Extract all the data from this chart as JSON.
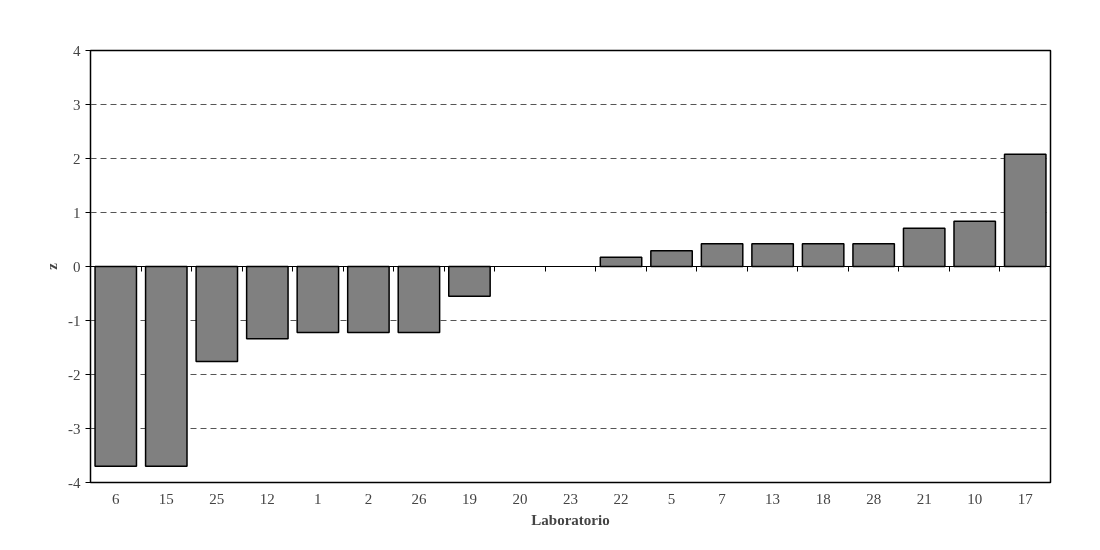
{
  "chart_data": {
    "type": "bar",
    "xlabel": "Laboratorio",
    "ylabel": "z",
    "categories": [
      "6",
      "15",
      "25",
      "12",
      "1",
      "2",
      "26",
      "19",
      "20",
      "23",
      "22",
      "5",
      "7",
      "13",
      "18",
      "28",
      "21",
      "10",
      "17"
    ],
    "values": [
      -3.7,
      -3.7,
      -1.76,
      -1.34,
      -1.22,
      -1.22,
      -1.22,
      -0.55,
      null,
      null,
      0.17,
      0.29,
      0.42,
      0.42,
      0.42,
      0.42,
      0.71,
      0.84,
      2.08
    ],
    "color": "#808080",
    "ylim": [
      -4,
      4
    ],
    "yticks": [
      -4,
      -3,
      -2,
      -1,
      0,
      1,
      2,
      3,
      4
    ],
    "grid": "y"
  }
}
